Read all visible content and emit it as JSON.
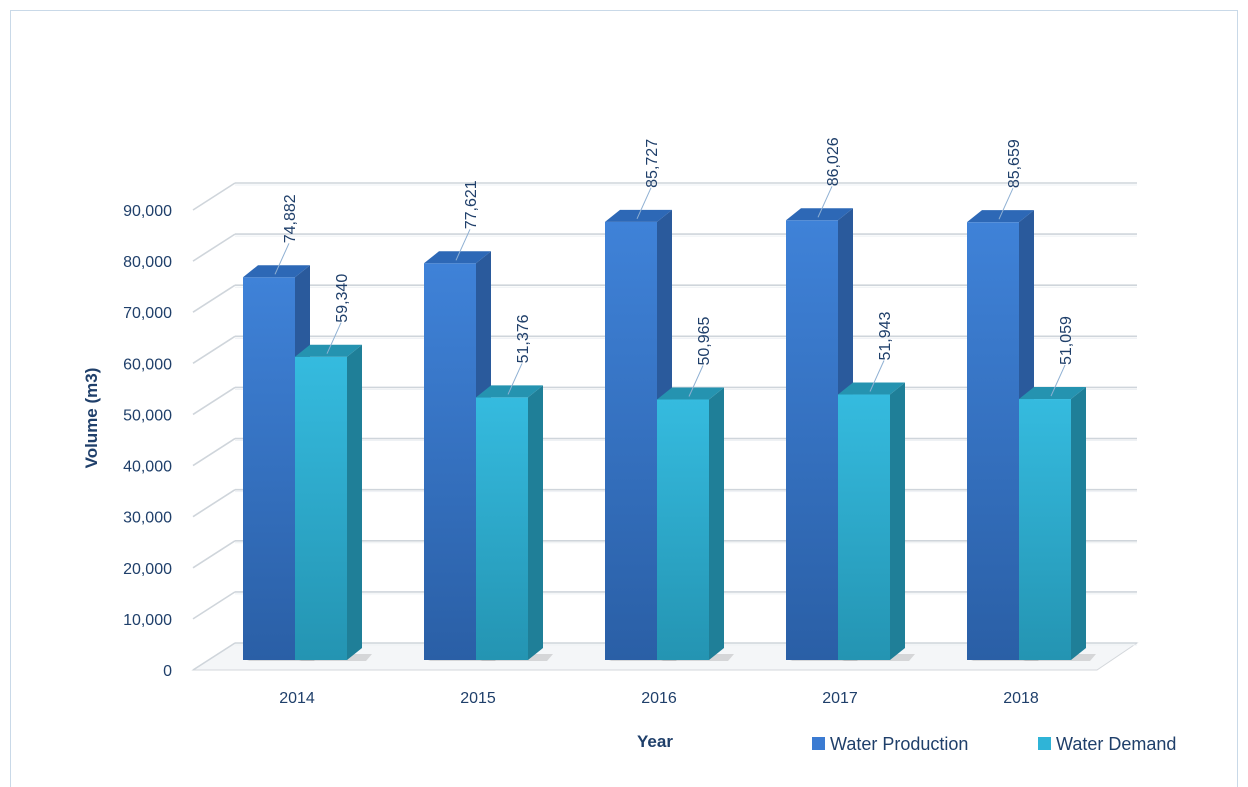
{
  "chart_data": {
    "type": "bar",
    "categories": [
      "2014",
      "2015",
      "2016",
      "2017",
      "2018"
    ],
    "series": [
      {
        "name": "Water Production",
        "values": [
          74882,
          77621,
          85727,
          86026,
          85659
        ],
        "labels": [
          "74,882",
          "77,621",
          "85,727",
          "86,026",
          "85,659"
        ],
        "color": "#3b7bd2"
      },
      {
        "name": "Water Demand",
        "values": [
          59340,
          51376,
          50965,
          51943,
          51059
        ],
        "labels": [
          "59,340",
          "51,376",
          "50,965",
          "51,943",
          "51,059"
        ],
        "color": "#2fb4d7"
      }
    ],
    "xlabel": "Year",
    "ylabel": "Volume (m3)",
    "ylim": [
      0,
      90000
    ],
    "yticks": [
      0,
      10000,
      20000,
      30000,
      40000,
      50000,
      60000,
      70000,
      80000,
      90000
    ],
    "ytick_labels": [
      "0",
      "10,000",
      "20,000",
      "30,000",
      "40,000",
      "50,000",
      "60,000",
      "70,000",
      "80,000",
      "90,000"
    ],
    "grid": true,
    "style": "3d-clustered-column",
    "legend_position": "bottom-right"
  }
}
